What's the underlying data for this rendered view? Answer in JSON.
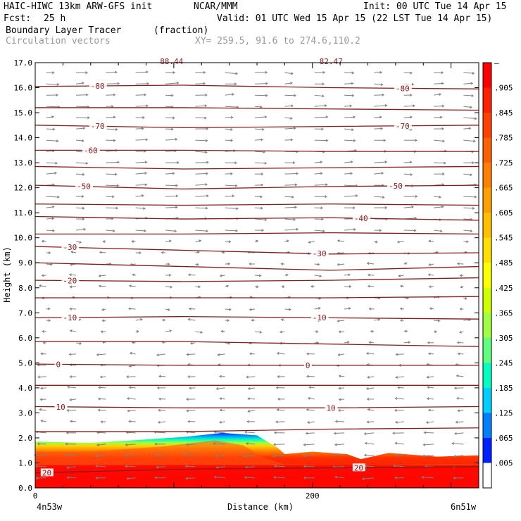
{
  "header": {
    "model": "HAIC-HIWC 13km ARW-GFS init",
    "org": "NCAR/MMM",
    "init": "Init: 00 UTC Tue 14 Apr 15",
    "fcst_label": "Fcst:",
    "fcst_value": "25 h",
    "valid": "Valid: 01 UTC Wed 15 Apr 15 (22 LST Tue 14 Apr 15)",
    "field": "Boundary Layer Tracer",
    "units": "(fraction)",
    "vectors": "Circulation vectors",
    "xy": "XY= 259.5, 91.6 to 274.6,110.2"
  },
  "colors": {
    "contour": "#8b1a1a",
    "vector": "#808080",
    "xy_text": "#999999"
  },
  "chart_data": {
    "type": "heatmap",
    "title": "Boundary Layer Tracer",
    "ylabel": "Height (km)",
    "xlabel": "Distance (km)",
    "x_left_label": "4n53w",
    "x_right_label": "6n51w",
    "xlim": [
      0,
      320
    ],
    "ylim": [
      0,
      17
    ],
    "xticks": [
      0,
      200
    ],
    "yticks": [
      "0.0",
      "1.0",
      "2.0",
      "3.0",
      "4.0",
      "5.0",
      "6.0",
      "7.0",
      "8.0",
      "9.0",
      "10.0",
      "11.0",
      "12.0",
      "13.0",
      "14.0",
      "15.0",
      "16.0",
      "17.0"
    ],
    "colorbar": {
      "labels": [
        "–",
        ".905",
        ".845",
        ".785",
        ".725",
        ".665",
        ".605",
        ".545",
        ".485",
        ".425",
        ".365",
        ".305",
        ".245",
        ".185",
        ".125",
        ".065",
        ".005"
      ],
      "colors": [
        "#ff0000",
        "#ff2000",
        "#ff4000",
        "#ff6000",
        "#ff8000",
        "#ffa000",
        "#ffc000",
        "#ffe000",
        "#ffff00",
        "#d0ff00",
        "#a0ff40",
        "#60ff80",
        "#00ffc0",
        "#00d0ff",
        "#0080ff",
        "#0020ff",
        "#ffffff"
      ]
    },
    "tracer_top": [
      {
        "x": 0,
        "y": 1.85
      },
      {
        "x": 40,
        "y": 1.8
      },
      {
        "x": 70,
        "y": 1.9
      },
      {
        "x": 110,
        "y": 2.05
      },
      {
        "x": 135,
        "y": 2.2
      },
      {
        "x": 160,
        "y": 2.1
      },
      {
        "x": 175,
        "y": 1.6
      },
      {
        "x": 180,
        "y": 1.35
      },
      {
        "x": 200,
        "y": 1.45
      },
      {
        "x": 225,
        "y": 1.35
      },
      {
        "x": 235,
        "y": 1.15
      },
      {
        "x": 255,
        "y": 1.4
      },
      {
        "x": 290,
        "y": 1.25
      },
      {
        "x": 320,
        "y": 1.3
      }
    ],
    "tracer_core_top": [
      {
        "x": 0,
        "y": 1.45
      },
      {
        "x": 40,
        "y": 1.45
      },
      {
        "x": 90,
        "y": 1.65
      },
      {
        "x": 130,
        "y": 1.9
      },
      {
        "x": 150,
        "y": 1.7
      },
      {
        "x": 165,
        "y": 1.2
      },
      {
        "x": 180,
        "y": 0.95
      },
      {
        "x": 230,
        "y": 0.9
      },
      {
        "x": 280,
        "y": 0.95
      },
      {
        "x": 320,
        "y": 0.95
      }
    ],
    "contours": [
      {
        "label": "-80",
        "heights": [
          16.05,
          16.1,
          16.0,
          15.95
        ]
      },
      {
        "label": "",
        "heights": [
          15.2,
          15.2,
          15.15,
          15.1
        ]
      },
      {
        "label": "-70",
        "heights": [
          14.5,
          14.4,
          14.45,
          14.5
        ]
      },
      {
        "label": "-60",
        "heights": [
          13.5,
          13.5,
          13.45,
          13.45
        ]
      },
      {
        "label": "",
        "heights": [
          12.85,
          12.75,
          12.8,
          12.85
        ]
      },
      {
        "label": "-50",
        "heights": [
          12.1,
          11.95,
          12.05,
          12.1
        ]
      },
      {
        "label": "",
        "heights": [
          11.35,
          11.3,
          11.35,
          11.3
        ]
      },
      {
        "label": "-40",
        "heights": [
          10.85,
          10.75,
          10.8,
          10.7
        ]
      },
      {
        "label": "",
        "heights": [
          10.15,
          10.15,
          10.2,
          10.15
        ]
      },
      {
        "label": "-30",
        "heights": [
          9.65,
          9.5,
          9.35,
          9.4
        ]
      },
      {
        "label": "",
        "heights": [
          9.0,
          8.85,
          8.7,
          8.85
        ]
      },
      {
        "label": "-20",
        "heights": [
          8.3,
          8.25,
          8.3,
          8.4
        ]
      },
      {
        "label": "",
        "heights": [
          7.6,
          7.6,
          7.6,
          7.65
        ]
      },
      {
        "label": "-10",
        "heights": [
          6.8,
          6.85,
          6.8,
          6.75
        ]
      },
      {
        "label": "",
        "heights": [
          5.85,
          5.85,
          5.75,
          5.65
        ]
      },
      {
        "label": "0",
        "heights": [
          4.95,
          4.9,
          4.9,
          4.9
        ]
      },
      {
        "label": "",
        "heights": [
          4.1,
          4.1,
          4.1,
          4.1
        ]
      },
      {
        "label": "10",
        "heights": [
          3.25,
          3.2,
          3.2,
          3.25
        ]
      },
      {
        "label": "",
        "heights": [
          2.25,
          2.25,
          2.35,
          2.4
        ]
      },
      {
        "label": "20",
        "heights": [
          0.6,
          0.75,
          0.8,
          0.85
        ]
      }
    ],
    "contour_label_x": {
      "-80": [
        40,
        260
      ],
      "-70": [
        40,
        260
      ],
      "-60": [
        35
      ],
      "-50": [
        30,
        255
      ],
      "-40": [
        230
      ],
      "-30": [
        20,
        200
      ],
      "-20": [
        20
      ],
      "-10": [
        20,
        200
      ],
      "0": [
        15,
        195
      ],
      "10": [
        15,
        210
      ],
      "20": [
        5,
        230
      ]
    },
    "top_labels": [
      "88.44",
      "82.47"
    ],
    "top_label_x": [
      90,
      205
    ]
  }
}
